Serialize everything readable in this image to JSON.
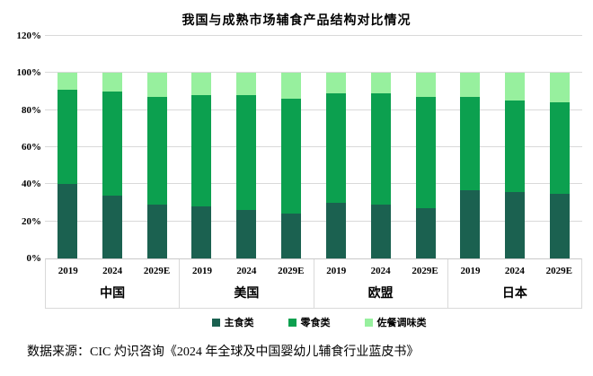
{
  "title": "我国与成熟市场辅食产品结构对比情况",
  "source": "数据来源：CIC 灼识咨询《2024 年全球及中国婴幼儿辅食行业蓝皮书》",
  "colors": {
    "main_food": "#1B6150",
    "snack_food": "#0CA04F",
    "condiment_food": "#97F09E",
    "gridline": "#D9D9D9",
    "axis_box_border": "#D9D9D9"
  },
  "chart_data": {
    "type": "bar",
    "stacked": true,
    "title": "我国与成熟市场辅食产品结构对比情况",
    "xlabel": "",
    "ylabel": "",
    "ylim": [
      0,
      120
    ],
    "yticks": [
      0,
      20,
      40,
      60,
      80,
      100,
      120
    ],
    "ytick_suffix": "%",
    "grid": true,
    "legend_position": "bottom",
    "groups": [
      "中国",
      "美国",
      "欧盟",
      "日本"
    ],
    "years": [
      "2019",
      "2024",
      "2029E"
    ],
    "series": [
      {
        "name": "主食类",
        "color": "#1B6150",
        "values": {
          "中国": [
            40,
            34,
            29
          ],
          "美国": [
            28,
            26,
            24
          ],
          "欧盟": [
            30,
            29,
            27
          ],
          "日本": [
            37,
            36,
            35
          ]
        }
      },
      {
        "name": "零食类",
        "color": "#0CA04F",
        "values": {
          "中国": [
            51,
            56,
            58
          ],
          "美国": [
            60,
            62,
            62
          ],
          "欧盟": [
            59,
            60,
            60
          ],
          "日本": [
            50,
            49,
            49
          ]
        }
      },
      {
        "name": "佐餐调味类",
        "color": "#97F09E",
        "values": {
          "中国": [
            9,
            10,
            13
          ],
          "美国": [
            12,
            12,
            14
          ],
          "欧盟": [
            11,
            11,
            13
          ],
          "日本": [
            13,
            15,
            16
          ]
        }
      }
    ]
  }
}
